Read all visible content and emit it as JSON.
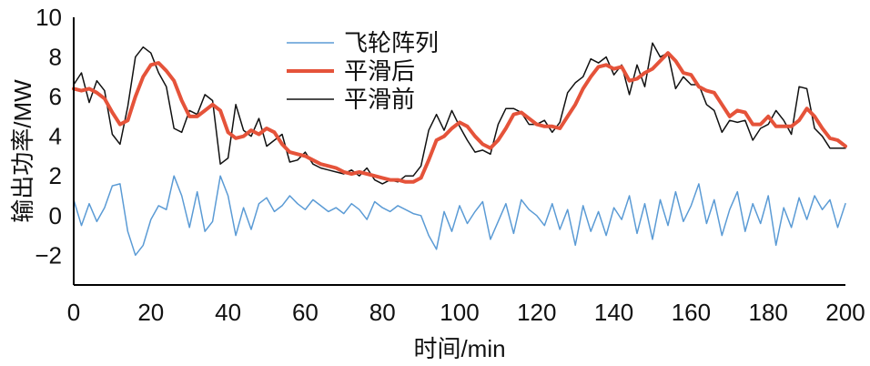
{
  "chart_data": {
    "type": "line",
    "xlabel": "时间/min",
    "ylabel": "输出功率/MW",
    "xlim": [
      0,
      200
    ],
    "ylim": [
      -3.5,
      10
    ],
    "xticks": [
      0,
      20,
      40,
      60,
      80,
      100,
      120,
      140,
      160,
      180,
      200
    ],
    "yticks": [
      -2,
      0,
      2,
      4,
      6,
      8,
      10
    ],
    "xtick_labels": [
      "0",
      "20",
      "40",
      "60",
      "80",
      "100",
      "120",
      "140",
      "160",
      "180",
      "200"
    ],
    "ytick_labels": [
      "−2",
      "0",
      "2",
      "4",
      "6",
      "8",
      "10"
    ],
    "grid": false,
    "legend_position": "top-center",
    "series": [
      {
        "name": "飞轮阵列",
        "color": "#5b9bd5",
        "stroke_width": 1.5,
        "x": [
          0,
          2,
          4,
          6,
          8,
          10,
          12,
          14,
          16,
          18,
          20,
          22,
          24,
          26,
          28,
          30,
          32,
          34,
          36,
          38,
          40,
          42,
          44,
          46,
          48,
          50,
          52,
          54,
          56,
          58,
          60,
          62,
          64,
          66,
          68,
          70,
          72,
          74,
          76,
          78,
          80,
          82,
          84,
          86,
          88,
          90,
          92,
          94,
          96,
          98,
          100,
          102,
          104,
          106,
          108,
          110,
          112,
          114,
          116,
          118,
          120,
          122,
          124,
          126,
          128,
          130,
          132,
          134,
          136,
          138,
          140,
          142,
          144,
          146,
          148,
          150,
          152,
          154,
          156,
          158,
          160,
          162,
          164,
          166,
          168,
          170,
          172,
          174,
          176,
          178,
          180,
          182,
          184,
          186,
          188,
          190,
          192,
          194,
          196,
          198,
          200
        ],
        "y": [
          0.8,
          -0.5,
          0.6,
          -0.3,
          0.4,
          1.5,
          1.6,
          -0.8,
          -2.0,
          -1.5,
          -0.2,
          0.5,
          0.3,
          2.0,
          1.0,
          -0.6,
          1.2,
          -0.8,
          -0.3,
          2.0,
          1.0,
          -1.0,
          0.4,
          -0.7,
          0.6,
          0.9,
          0.2,
          0.5,
          1.0,
          0.6,
          0.3,
          0.8,
          0.5,
          0.2,
          0.4,
          0.1,
          0.6,
          0.3,
          -0.2,
          0.7,
          0.4,
          0.2,
          0.5,
          0.3,
          0.1,
          0.0,
          -1.0,
          -1.7,
          0.2,
          -0.8,
          0.5,
          -0.4,
          0.2,
          0.7,
          -1.2,
          -0.3,
          0.6,
          -0.9,
          0.8,
          0.3,
          0.0,
          -0.5,
          0.6,
          -0.7,
          0.3,
          -1.5,
          0.5,
          -0.8,
          0.2,
          -1.0,
          0.4,
          -0.2,
          1.0,
          -0.9,
          0.6,
          -1.2,
          0.8,
          -0.5,
          1.2,
          -0.3,
          0.5,
          1.6,
          -0.4,
          0.8,
          -1.0,
          0.3,
          1.2,
          -0.8,
          0.6,
          -0.4,
          1.0,
          -1.5,
          0.4,
          -0.6,
          0.9,
          -0.2,
          1.0,
          0.3,
          0.8,
          -0.6,
          0.6
        ]
      },
      {
        "name": "平滑后",
        "color": "#e5533a",
        "stroke_width": 4,
        "x": [
          0,
          2,
          4,
          6,
          8,
          10,
          12,
          14,
          16,
          18,
          20,
          22,
          24,
          26,
          28,
          30,
          32,
          34,
          36,
          38,
          40,
          42,
          44,
          46,
          48,
          50,
          52,
          54,
          56,
          58,
          60,
          62,
          64,
          66,
          68,
          70,
          72,
          74,
          76,
          78,
          80,
          82,
          84,
          86,
          88,
          90,
          92,
          94,
          96,
          98,
          100,
          102,
          104,
          106,
          108,
          110,
          112,
          114,
          116,
          118,
          120,
          122,
          124,
          126,
          128,
          130,
          132,
          134,
          136,
          138,
          140,
          142,
          144,
          146,
          148,
          150,
          152,
          154,
          156,
          158,
          160,
          162,
          164,
          166,
          168,
          170,
          172,
          174,
          176,
          178,
          180,
          182,
          184,
          186,
          188,
          190,
          192,
          194,
          196,
          198,
          200
        ],
        "y": [
          6.4,
          6.3,
          6.4,
          6.2,
          5.9,
          5.2,
          4.6,
          4.8,
          6.0,
          7.0,
          7.6,
          7.7,
          7.3,
          6.8,
          5.8,
          5.0,
          5.0,
          5.3,
          5.6,
          5.3,
          4.2,
          3.9,
          4.0,
          4.3,
          4.1,
          4.4,
          4.2,
          3.6,
          3.2,
          3.1,
          3.0,
          2.8,
          2.6,
          2.5,
          2.4,
          2.2,
          2.1,
          2.2,
          2.1,
          2.0,
          1.9,
          1.8,
          1.8,
          1.7,
          1.7,
          1.9,
          2.8,
          3.8,
          4.0,
          4.4,
          4.7,
          4.5,
          4.0,
          3.6,
          3.4,
          3.8,
          4.4,
          5.1,
          5.2,
          4.9,
          4.6,
          4.5,
          4.5,
          4.4,
          5.0,
          5.6,
          6.4,
          7.0,
          7.5,
          7.6,
          7.4,
          7.5,
          6.8,
          6.9,
          7.2,
          7.4,
          7.8,
          8.2,
          7.8,
          7.2,
          7.1,
          6.5,
          6.3,
          6.2,
          5.6,
          5.0,
          5.3,
          5.2,
          4.6,
          4.6,
          5.0,
          4.5,
          4.5,
          4.5,
          4.8,
          5.4,
          5.0,
          4.4,
          3.9,
          3.8,
          3.5
        ]
      },
      {
        "name": "平滑前",
        "color": "#111111",
        "stroke_width": 1.5,
        "x": [
          0,
          2,
          4,
          6,
          8,
          10,
          12,
          14,
          16,
          18,
          20,
          22,
          24,
          26,
          28,
          30,
          32,
          34,
          36,
          38,
          40,
          42,
          44,
          46,
          48,
          50,
          52,
          54,
          56,
          58,
          60,
          62,
          64,
          66,
          68,
          70,
          72,
          74,
          76,
          78,
          80,
          82,
          84,
          86,
          88,
          90,
          92,
          94,
          96,
          98,
          100,
          102,
          104,
          106,
          108,
          110,
          112,
          114,
          116,
          118,
          120,
          122,
          124,
          126,
          128,
          130,
          132,
          134,
          136,
          138,
          140,
          142,
          144,
          146,
          148,
          150,
          152,
          154,
          156,
          158,
          160,
          162,
          164,
          166,
          168,
          170,
          172,
          174,
          176,
          178,
          180,
          182,
          184,
          186,
          188,
          190,
          192,
          194,
          196,
          198,
          200
        ],
        "y": [
          6.6,
          7.2,
          5.7,
          6.8,
          6.3,
          4.1,
          3.6,
          5.5,
          8.0,
          8.5,
          8.2,
          7.2,
          6.5,
          4.4,
          4.2,
          5.3,
          5.1,
          6.1,
          5.8,
          2.6,
          2.9,
          5.6,
          4.3,
          4.0,
          4.9,
          3.5,
          3.8,
          4.1,
          2.7,
          2.8,
          3.2,
          2.6,
          2.4,
          2.3,
          2.2,
          2.1,
          2.3,
          2.0,
          2.4,
          1.8,
          1.6,
          1.8,
          1.7,
          2.0,
          2.0,
          2.5,
          4.3,
          5.1,
          4.3,
          5.3,
          4.5,
          3.8,
          3.2,
          3.3,
          3.1,
          4.6,
          5.4,
          5.4,
          5.2,
          4.6,
          4.6,
          4.8,
          4.2,
          4.7,
          6.2,
          6.7,
          7.0,
          7.9,
          7.7,
          8.0,
          7.1,
          7.6,
          6.1,
          7.6,
          6.5,
          8.7,
          8.0,
          8.2,
          6.4,
          7.0,
          6.6,
          6.6,
          5.6,
          5.3,
          4.2,
          4.8,
          4.7,
          4.8,
          3.8,
          4.4,
          4.6,
          5.3,
          4.8,
          4.1,
          6.5,
          6.4,
          4.4,
          4.0,
          3.4,
          3.4,
          3.4
        ]
      }
    ]
  }
}
